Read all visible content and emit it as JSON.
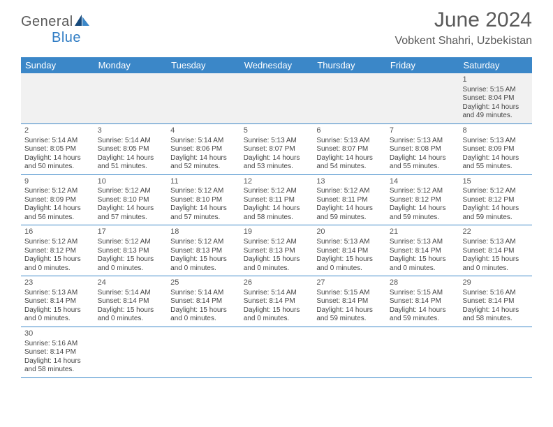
{
  "logo": {
    "text_gray": "General",
    "text_blue": "Blue"
  },
  "title": "June 2024",
  "location": "Vobkent Shahri, Uzbekistan",
  "colors": {
    "header_bg": "#3b87c8",
    "header_text": "#ffffff",
    "row_border": "#3b87c8",
    "first_row_bg": "#f1f1f1",
    "body_text": "#444444",
    "title_text": "#5a5a5a"
  },
  "day_headers": [
    "Sunday",
    "Monday",
    "Tuesday",
    "Wednesday",
    "Thursday",
    "Friday",
    "Saturday"
  ],
  "weeks": [
    [
      null,
      null,
      null,
      null,
      null,
      null,
      {
        "n": "1",
        "sr": "5:15 AM",
        "ss": "8:04 PM",
        "dl": "14 hours and 49 minutes."
      }
    ],
    [
      {
        "n": "2",
        "sr": "5:14 AM",
        "ss": "8:05 PM",
        "dl": "14 hours and 50 minutes."
      },
      {
        "n": "3",
        "sr": "5:14 AM",
        "ss": "8:05 PM",
        "dl": "14 hours and 51 minutes."
      },
      {
        "n": "4",
        "sr": "5:14 AM",
        "ss": "8:06 PM",
        "dl": "14 hours and 52 minutes."
      },
      {
        "n": "5",
        "sr": "5:13 AM",
        "ss": "8:07 PM",
        "dl": "14 hours and 53 minutes."
      },
      {
        "n": "6",
        "sr": "5:13 AM",
        "ss": "8:07 PM",
        "dl": "14 hours and 54 minutes."
      },
      {
        "n": "7",
        "sr": "5:13 AM",
        "ss": "8:08 PM",
        "dl": "14 hours and 55 minutes."
      },
      {
        "n": "8",
        "sr": "5:13 AM",
        "ss": "8:09 PM",
        "dl": "14 hours and 55 minutes."
      }
    ],
    [
      {
        "n": "9",
        "sr": "5:12 AM",
        "ss": "8:09 PM",
        "dl": "14 hours and 56 minutes."
      },
      {
        "n": "10",
        "sr": "5:12 AM",
        "ss": "8:10 PM",
        "dl": "14 hours and 57 minutes."
      },
      {
        "n": "11",
        "sr": "5:12 AM",
        "ss": "8:10 PM",
        "dl": "14 hours and 57 minutes."
      },
      {
        "n": "12",
        "sr": "5:12 AM",
        "ss": "8:11 PM",
        "dl": "14 hours and 58 minutes."
      },
      {
        "n": "13",
        "sr": "5:12 AM",
        "ss": "8:11 PM",
        "dl": "14 hours and 59 minutes."
      },
      {
        "n": "14",
        "sr": "5:12 AM",
        "ss": "8:12 PM",
        "dl": "14 hours and 59 minutes."
      },
      {
        "n": "15",
        "sr": "5:12 AM",
        "ss": "8:12 PM",
        "dl": "14 hours and 59 minutes."
      }
    ],
    [
      {
        "n": "16",
        "sr": "5:12 AM",
        "ss": "8:12 PM",
        "dl": "15 hours and 0 minutes."
      },
      {
        "n": "17",
        "sr": "5:12 AM",
        "ss": "8:13 PM",
        "dl": "15 hours and 0 minutes."
      },
      {
        "n": "18",
        "sr": "5:12 AM",
        "ss": "8:13 PM",
        "dl": "15 hours and 0 minutes."
      },
      {
        "n": "19",
        "sr": "5:12 AM",
        "ss": "8:13 PM",
        "dl": "15 hours and 0 minutes."
      },
      {
        "n": "20",
        "sr": "5:13 AM",
        "ss": "8:14 PM",
        "dl": "15 hours and 0 minutes."
      },
      {
        "n": "21",
        "sr": "5:13 AM",
        "ss": "8:14 PM",
        "dl": "15 hours and 0 minutes."
      },
      {
        "n": "22",
        "sr": "5:13 AM",
        "ss": "8:14 PM",
        "dl": "15 hours and 0 minutes."
      }
    ],
    [
      {
        "n": "23",
        "sr": "5:13 AM",
        "ss": "8:14 PM",
        "dl": "15 hours and 0 minutes."
      },
      {
        "n": "24",
        "sr": "5:14 AM",
        "ss": "8:14 PM",
        "dl": "15 hours and 0 minutes."
      },
      {
        "n": "25",
        "sr": "5:14 AM",
        "ss": "8:14 PM",
        "dl": "15 hours and 0 minutes."
      },
      {
        "n": "26",
        "sr": "5:14 AM",
        "ss": "8:14 PM",
        "dl": "15 hours and 0 minutes."
      },
      {
        "n": "27",
        "sr": "5:15 AM",
        "ss": "8:14 PM",
        "dl": "14 hours and 59 minutes."
      },
      {
        "n": "28",
        "sr": "5:15 AM",
        "ss": "8:14 PM",
        "dl": "14 hours and 59 minutes."
      },
      {
        "n": "29",
        "sr": "5:16 AM",
        "ss": "8:14 PM",
        "dl": "14 hours and 58 minutes."
      }
    ],
    [
      {
        "n": "30",
        "sr": "5:16 AM",
        "ss": "8:14 PM",
        "dl": "14 hours and 58 minutes."
      },
      null,
      null,
      null,
      null,
      null,
      null
    ]
  ],
  "labels": {
    "sunrise": "Sunrise: ",
    "sunset": "Sunset: ",
    "daylight": "Daylight: "
  }
}
